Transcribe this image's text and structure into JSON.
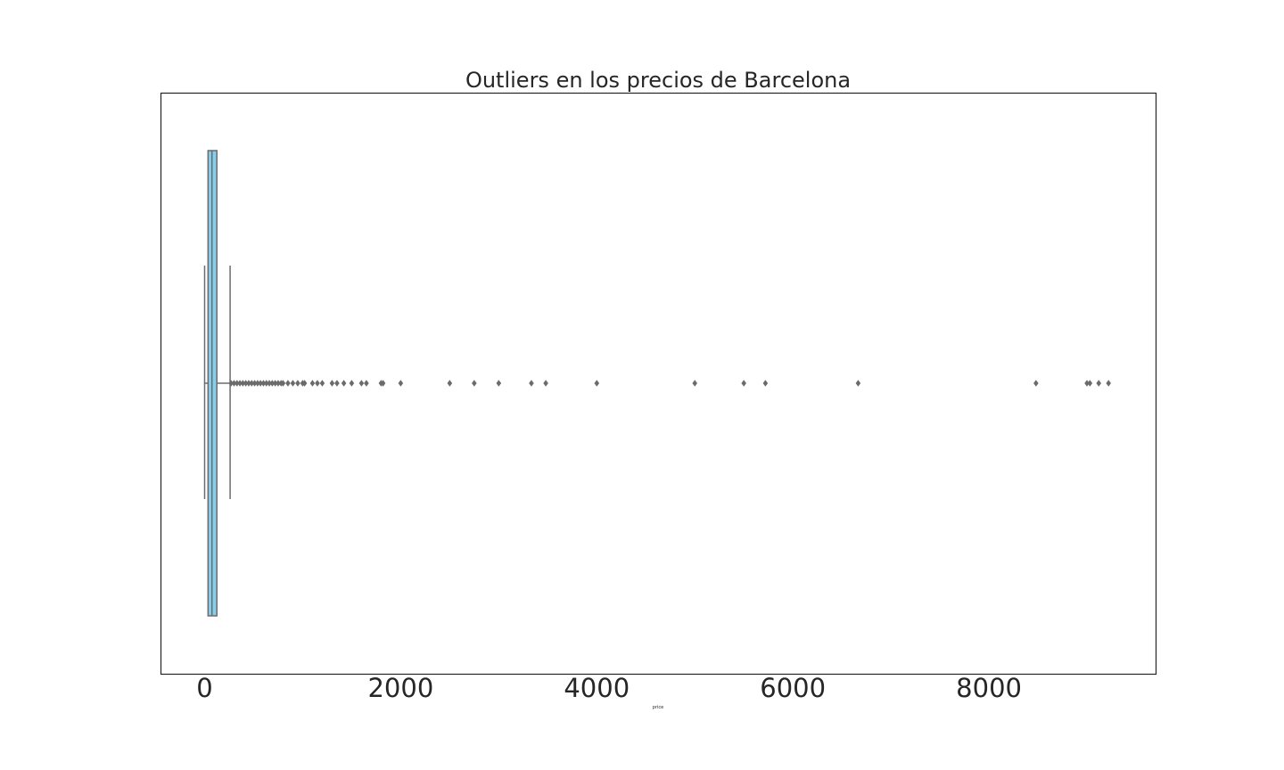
{
  "chart_data": {
    "type": "boxplot",
    "title": "Outliers en los precios de Barcelona",
    "xlabel": "price",
    "ylabel": "",
    "orientation": "horizontal",
    "xlim": [
      -450,
      9700
    ],
    "xticks": [
      0,
      2000,
      4000,
      6000,
      8000
    ],
    "xtick_labels": [
      "0",
      "2000",
      "4000",
      "6000",
      "8000"
    ],
    "grid": false,
    "box": {
      "min": 0,
      "q1": 35,
      "median": 75,
      "q3": 125,
      "whisker_high": 260,
      "color": "#87ceeb"
    },
    "outliers": [
      270,
      300,
      330,
      360,
      390,
      420,
      450,
      480,
      510,
      540,
      570,
      600,
      630,
      660,
      690,
      720,
      750,
      780,
      800,
      850,
      900,
      950,
      1000,
      1020,
      1100,
      1150,
      1200,
      1300,
      1350,
      1420,
      1500,
      1600,
      1650,
      1800,
      1820,
      2000,
      2500,
      2750,
      3000,
      3333,
      3480,
      4000,
      5000,
      5500,
      5720,
      6666,
      8480,
      9000,
      9030,
      9120,
      9220
    ]
  }
}
